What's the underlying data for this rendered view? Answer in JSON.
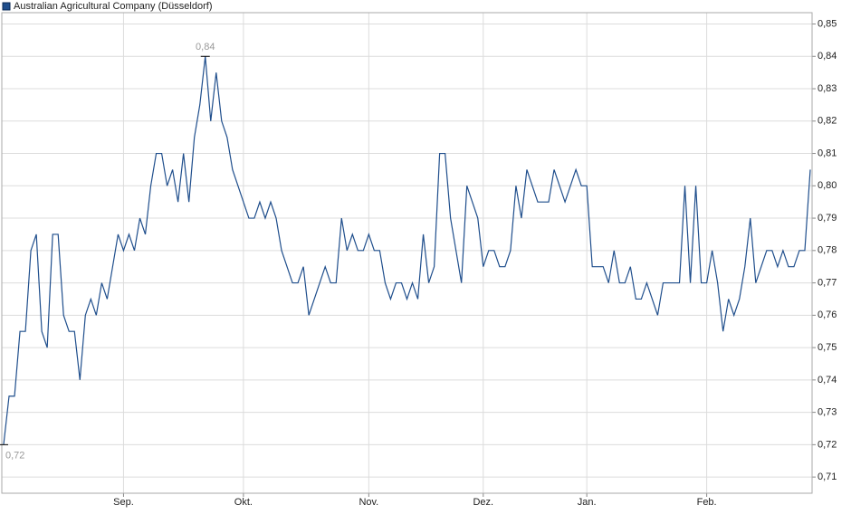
{
  "chart_data": {
    "type": "line",
    "series": [
      {
        "name": "Australian Agricultural Company (Düsseldorf)",
        "color": "#1f4e8c",
        "values": [
          0.72,
          0.735,
          0.735,
          0.755,
          0.755,
          0.78,
          0.785,
          0.755,
          0.75,
          0.785,
          0.785,
          0.76,
          0.755,
          0.755,
          0.74,
          0.76,
          0.765,
          0.76,
          0.77,
          0.765,
          0.775,
          0.785,
          0.78,
          0.785,
          0.78,
          0.79,
          0.785,
          0.8,
          0.81,
          0.81,
          0.8,
          0.805,
          0.795,
          0.81,
          0.795,
          0.815,
          0.825,
          0.84,
          0.82,
          0.835,
          0.82,
          0.815,
          0.805,
          0.8,
          0.795,
          0.79,
          0.79,
          0.795,
          0.79,
          0.795,
          0.79,
          0.78,
          0.775,
          0.77,
          0.77,
          0.775,
          0.76,
          0.765,
          0.77,
          0.775,
          0.77,
          0.77,
          0.79,
          0.78,
          0.785,
          0.78,
          0.78,
          0.785,
          0.78,
          0.78,
          0.77,
          0.765,
          0.77,
          0.77,
          0.765,
          0.77,
          0.765,
          0.785,
          0.77,
          0.775,
          0.81,
          0.81,
          0.79,
          0.78,
          0.77,
          0.8,
          0.795,
          0.79,
          0.775,
          0.78,
          0.78,
          0.775,
          0.775,
          0.78,
          0.8,
          0.79,
          0.805,
          0.8,
          0.795,
          0.795,
          0.795,
          0.805,
          0.8,
          0.795,
          0.8,
          0.805,
          0.8,
          0.8,
          0.775,
          0.775,
          0.775,
          0.77,
          0.78,
          0.77,
          0.77,
          0.775,
          0.765,
          0.765,
          0.77,
          0.765,
          0.76,
          0.77,
          0.77,
          0.77,
          0.77,
          0.8,
          0.77,
          0.8,
          0.77,
          0.77,
          0.78,
          0.77,
          0.755,
          0.765,
          0.76,
          0.765,
          0.775,
          0.79,
          0.77,
          0.775,
          0.78,
          0.78,
          0.775,
          0.78,
          0.775,
          0.775,
          0.78,
          0.78,
          0.805
        ]
      }
    ],
    "x": [
      0,
      1,
      2,
      3,
      4,
      5,
      6,
      7,
      8,
      9,
      10,
      11,
      12,
      13,
      14,
      15,
      16,
      17,
      18,
      19,
      20,
      21,
      22,
      23,
      24,
      25,
      26,
      27,
      28,
      29,
      30,
      31,
      32,
      33,
      34,
      35,
      36,
      37,
      38,
      39,
      40,
      41,
      42,
      43,
      44,
      45,
      46,
      47,
      48,
      49,
      50,
      51,
      52,
      53,
      54,
      55,
      56,
      57,
      58,
      59,
      60,
      61,
      62,
      63,
      64,
      65,
      66,
      67,
      68,
      69,
      70,
      71,
      72,
      73,
      74,
      75,
      76,
      77,
      78,
      79,
      80,
      81,
      82,
      83,
      84,
      85,
      86,
      87,
      88,
      89,
      90,
      91,
      92,
      93,
      94,
      95,
      96,
      97,
      98,
      99,
      100,
      101,
      102,
      103,
      104,
      105,
      106,
      107,
      108,
      109,
      110,
      111,
      112,
      113,
      114,
      115,
      116,
      117,
      118,
      119,
      120,
      121,
      122,
      123,
      124,
      125,
      126,
      127,
      128,
      129,
      130,
      131,
      132,
      133,
      134,
      135,
      136,
      137,
      138,
      139,
      140,
      141,
      142,
      143,
      144,
      145,
      146,
      147,
      148
    ],
    "xlim": [
      0,
      148
    ],
    "xticks": [
      {
        "value": 22,
        "label": "Sep."
      },
      {
        "value": 44,
        "label": "Okt."
      },
      {
        "value": 67,
        "label": "Nov."
      },
      {
        "value": 88,
        "label": "Dez."
      },
      {
        "value": 107,
        "label": "Jan."
      },
      {
        "value": 129,
        "label": "Feb."
      }
    ],
    "ylim": [
      0.705,
      0.8535
    ],
    "yticks": [
      {
        "value": 0.71,
        "label": "0,71"
      },
      {
        "value": 0.72,
        "label": "0,72"
      },
      {
        "value": 0.73,
        "label": "0,73"
      },
      {
        "value": 0.74,
        "label": "0,74"
      },
      {
        "value": 0.75,
        "label": "0,75"
      },
      {
        "value": 0.76,
        "label": "0,76"
      },
      {
        "value": 0.77,
        "label": "0,77"
      },
      {
        "value": 0.78,
        "label": "0,78"
      },
      {
        "value": 0.79,
        "label": "0,79"
      },
      {
        "value": 0.8,
        "label": "0,80"
      },
      {
        "value": 0.81,
        "label": "0,81"
      },
      {
        "value": 0.82,
        "label": "0,82"
      },
      {
        "value": 0.83,
        "label": "0,83"
      },
      {
        "value": 0.84,
        "label": "0,84"
      },
      {
        "value": 0.85,
        "label": "0,85"
      }
    ],
    "annotations": [
      {
        "x": 37,
        "value": 0.84,
        "label": "0,84"
      },
      {
        "x": 0,
        "value": 0.72,
        "label": "0,72"
      }
    ],
    "grid": true
  }
}
